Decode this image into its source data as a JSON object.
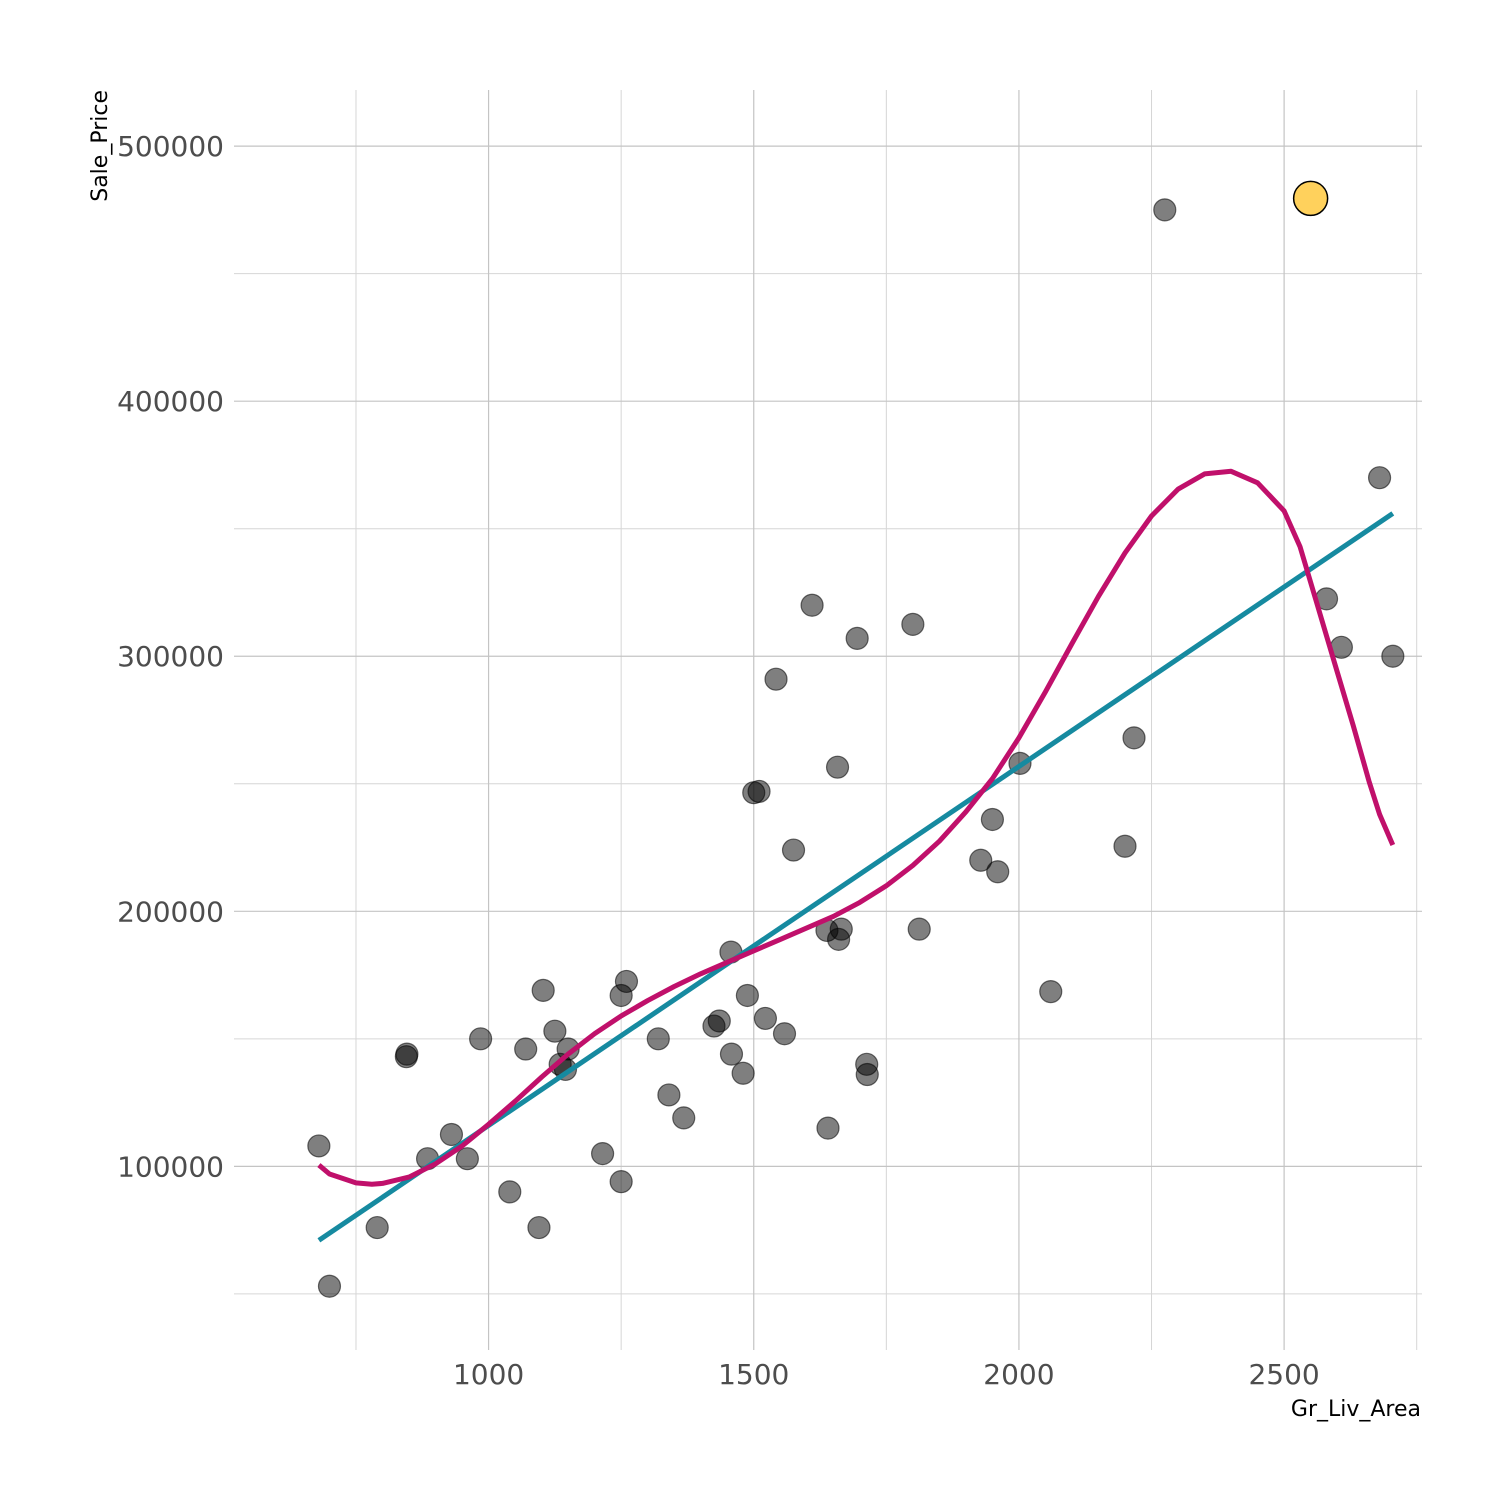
{
  "chart_data": {
    "type": "scatter",
    "title": "",
    "xlabel": "Gr_Liv_Area",
    "ylabel": "Sale_Price",
    "xlim": [
      520,
      2760
    ],
    "ylim": [
      28000,
      522000
    ],
    "x_ticks": [
      1000,
      1500,
      2000,
      2500
    ],
    "x_tick_labels": [
      "1000",
      "1500",
      "2000",
      "2500"
    ],
    "x_minor_ticks": [
      750,
      1250,
      1750,
      2250,
      2750
    ],
    "y_ticks": [
      100000,
      200000,
      300000,
      400000,
      500000
    ],
    "y_tick_labels": [
      "100000",
      "200000",
      "300000",
      "400000",
      "500000"
    ],
    "y_minor_ticks": [
      50000,
      150000,
      250000,
      350000,
      450000
    ],
    "grid": true,
    "legend": "none",
    "colors": {
      "points": "#000000",
      "highlight": "#ffd15c",
      "linear_fit": "#168aa0",
      "poly_fit": "#c0106b",
      "grid": "#c4c4c4"
    },
    "points": [
      {
        "x": 680,
        "y": 108000
      },
      {
        "x": 700,
        "y": 53000
      },
      {
        "x": 790,
        "y": 76000
      },
      {
        "x": 845,
        "y": 143000
      },
      {
        "x": 846,
        "y": 144000
      },
      {
        "x": 885,
        "y": 103000
      },
      {
        "x": 930,
        "y": 112500
      },
      {
        "x": 960,
        "y": 103000
      },
      {
        "x": 985,
        "y": 150000
      },
      {
        "x": 1040,
        "y": 90000
      },
      {
        "x": 1070,
        "y": 146000
      },
      {
        "x": 1095,
        "y": 76000
      },
      {
        "x": 1103,
        "y": 169000
      },
      {
        "x": 1125,
        "y": 153000
      },
      {
        "x": 1135,
        "y": 140000
      },
      {
        "x": 1145,
        "y": 138000
      },
      {
        "x": 1150,
        "y": 146000
      },
      {
        "x": 1215,
        "y": 105000
      },
      {
        "x": 1250,
        "y": 167000
      },
      {
        "x": 1250,
        "y": 94000
      },
      {
        "x": 1260,
        "y": 172500
      },
      {
        "x": 1320,
        "y": 150000
      },
      {
        "x": 1340,
        "y": 128000
      },
      {
        "x": 1368,
        "y": 119000
      },
      {
        "x": 1425,
        "y": 155000
      },
      {
        "x": 1435,
        "y": 157000
      },
      {
        "x": 1457,
        "y": 184000
      },
      {
        "x": 1458,
        "y": 144000
      },
      {
        "x": 1480,
        "y": 136500
      },
      {
        "x": 1488,
        "y": 167000
      },
      {
        "x": 1500,
        "y": 246500
      },
      {
        "x": 1510,
        "y": 247000
      },
      {
        "x": 1522,
        "y": 158000
      },
      {
        "x": 1542,
        "y": 291000
      },
      {
        "x": 1558,
        "y": 152000
      },
      {
        "x": 1575,
        "y": 224000
      },
      {
        "x": 1610,
        "y": 320000
      },
      {
        "x": 1638,
        "y": 192500
      },
      {
        "x": 1640,
        "y": 115000
      },
      {
        "x": 1658,
        "y": 256500
      },
      {
        "x": 1660,
        "y": 189000
      },
      {
        "x": 1665,
        "y": 193000
      },
      {
        "x": 1695,
        "y": 307000
      },
      {
        "x": 1713,
        "y": 140000
      },
      {
        "x": 1714,
        "y": 136000
      },
      {
        "x": 1800,
        "y": 312500
      },
      {
        "x": 1812,
        "y": 193000
      },
      {
        "x": 1928,
        "y": 220000
      },
      {
        "x": 1950,
        "y": 236000
      },
      {
        "x": 1960,
        "y": 215500
      },
      {
        "x": 2002,
        "y": 258000
      },
      {
        "x": 2060,
        "y": 168500
      },
      {
        "x": 2200,
        "y": 225500
      },
      {
        "x": 2217,
        "y": 268000
      },
      {
        "x": 2275,
        "y": 475000
      },
      {
        "x": 2580,
        "y": 322500
      },
      {
        "x": 2608,
        "y": 303500
      },
      {
        "x": 2680,
        "y": 370000
      },
      {
        "x": 2705,
        "y": 300000
      }
    ],
    "highlight_point": {
      "x": 2550,
      "y": 479500
    },
    "series": [
      {
        "type": "line",
        "style": "linear",
        "x": [
          680,
          2705
        ],
        "values": [
          71000,
          356000
        ]
      },
      {
        "type": "line",
        "style": "polynomial",
        "x": [
          680,
          700,
          750,
          780,
          800,
          850,
          900,
          950,
          1000,
          1050,
          1100,
          1150,
          1200,
          1250,
          1300,
          1350,
          1400,
          1450,
          1500,
          1550,
          1600,
          1650,
          1700,
          1750,
          1800,
          1850,
          1900,
          1950,
          2000,
          2050,
          2100,
          2150,
          2200,
          2250,
          2300,
          2350,
          2400,
          2450,
          2500,
          2530,
          2560,
          2600,
          2630,
          2660,
          2680,
          2705
        ],
        "values": [
          100500,
          97000,
          93500,
          93000,
          93300,
          95800,
          101000,
          108000,
          116500,
          125500,
          135000,
          144000,
          152000,
          159000,
          165000,
          170500,
          175500,
          180000,
          184500,
          189000,
          193500,
          198000,
          203500,
          210000,
          218000,
          227500,
          239000,
          252000,
          268000,
          286000,
          305000,
          323500,
          340500,
          355000,
          365500,
          371500,
          372500,
          368000,
          357000,
          343000,
          322000,
          294000,
          273000,
          251000,
          238000,
          226000
        ]
      }
    ]
  }
}
